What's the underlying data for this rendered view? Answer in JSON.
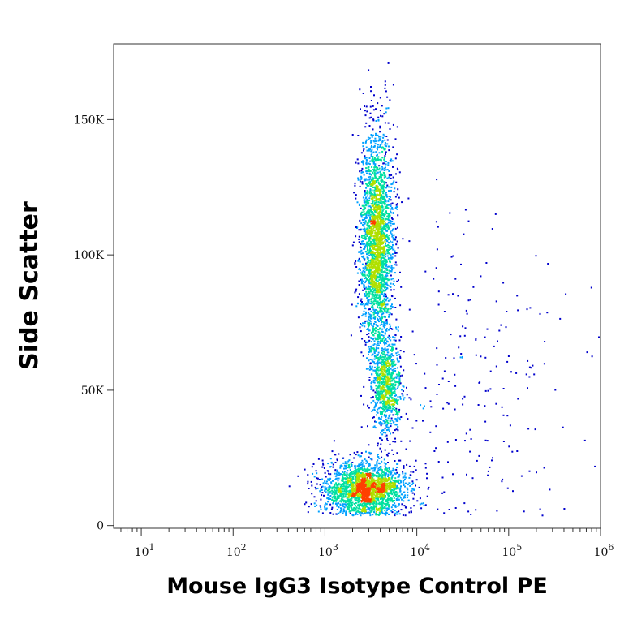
{
  "chart_data": {
    "type": "scatter",
    "title": "",
    "xlabel": "Mouse IgG3 Isotype Control PE",
    "ylabel": "Side Scatter",
    "x_scale": "log",
    "xlim": [
      5,
      1000000
    ],
    "ylim": [
      -1000,
      178000
    ],
    "x_ticks": [
      {
        "value": 10,
        "base": "10",
        "exp": "1"
      },
      {
        "value": 100,
        "base": "10",
        "exp": "2"
      },
      {
        "value": 1000,
        "base": "10",
        "exp": "3"
      },
      {
        "value": 10000,
        "base": "10",
        "exp": "4"
      },
      {
        "value": 100000,
        "base": "10",
        "exp": "5"
      },
      {
        "value": 1000000,
        "base": "10",
        "exp": "6"
      }
    ],
    "y_ticks": [
      {
        "value": 0,
        "label": "0"
      },
      {
        "value": 50000,
        "label": "50K"
      },
      {
        "value": 100000,
        "label": "100K"
      },
      {
        "value": 150000,
        "label": "150K"
      }
    ],
    "grid": false,
    "legend": "none",
    "color_scale": [
      "#0000cc",
      "#00a0ff",
      "#00e0a0",
      "#b0e000",
      "#ff4000"
    ],
    "populations": [
      {
        "center_x": 2700,
        "center_y": 14000,
        "spread_log_x": 0.22,
        "spread_y": 5000,
        "count": 2200
      },
      {
        "center_x": 3600,
        "center_y": 105000,
        "spread_log_x": 0.09,
        "spread_y": 20000,
        "count": 2600
      },
      {
        "center_x": 4600,
        "center_y": 52000,
        "spread_log_x": 0.08,
        "spread_y": 9000,
        "count": 900
      },
      {
        "center_x": 40000,
        "center_y": 50000,
        "spread_log_x": 0.55,
        "spread_y": 28000,
        "count": 220
      }
    ]
  }
}
